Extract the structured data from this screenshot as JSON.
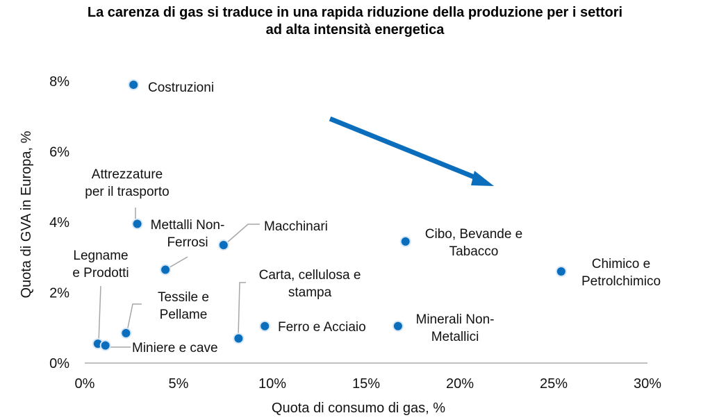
{
  "chart_data": {
    "type": "scatter",
    "title_lines": [
      "La carenza di gas si traduce in una rapida riduzione della produzione per i settori",
      "ad alta intensità energetica"
    ],
    "xlabel": "Quota di consumo di gas, %",
    "ylabel": "Quota di GVA in Europa, %",
    "xlim": [
      0,
      30
    ],
    "ylim": [
      0,
      8
    ],
    "x_ticks": [
      {
        "value": 0,
        "label": "0%"
      },
      {
        "value": 5,
        "label": "5%"
      },
      {
        "value": 10,
        "label": "10%"
      },
      {
        "value": 15,
        "label": "15%"
      },
      {
        "value": 20,
        "label": "20%"
      },
      {
        "value": 25,
        "label": "25%"
      },
      {
        "value": 30,
        "label": "30%"
      }
    ],
    "y_ticks": [
      {
        "value": 0,
        "label": "0%"
      },
      {
        "value": 2,
        "label": "2%"
      },
      {
        "value": 4,
        "label": "4%"
      },
      {
        "value": 6,
        "label": "6%"
      },
      {
        "value": 8,
        "label": "8%"
      }
    ],
    "grid": false,
    "legend": "none",
    "marker_color": "#0A6EBD",
    "arrow_color": "#0A6EBD",
    "arrow_direction": "down-right",
    "points": [
      {
        "label": [
          "Costruzioni"
        ],
        "x": 2.6,
        "y": 7.9
      },
      {
        "label": [
          "Attrezzature",
          "per il trasporto"
        ],
        "x": 2.8,
        "y": 3.95
      },
      {
        "label": [
          "Mettalli Non-",
          "Ferrosi"
        ],
        "x": 4.3,
        "y": 2.65
      },
      {
        "label": [
          "Macchinari"
        ],
        "x": 7.4,
        "y": 3.35
      },
      {
        "label": [
          "Legname",
          "e Prodotti"
        ],
        "x": 0.7,
        "y": 0.55
      },
      {
        "label": [
          "Miniere e cave"
        ],
        "x": 1.1,
        "y": 0.5
      },
      {
        "label": [
          "Tessile e",
          "Pellame"
        ],
        "x": 2.2,
        "y": 0.85
      },
      {
        "label": [
          "Carta, cellulosa e",
          "stampa"
        ],
        "x": 8.2,
        "y": 0.7
      },
      {
        "label": [
          "Ferro e Acciaio"
        ],
        "x": 9.6,
        "y": 1.05
      },
      {
        "label": [
          "Minerali Non-",
          "Metallici"
        ],
        "x": 16.7,
        "y": 1.05
      },
      {
        "label": [
          "Cibo, Bevande e",
          "Tabacco"
        ],
        "x": 17.1,
        "y": 3.45
      },
      {
        "label": [
          "Chimico e",
          "Petrolchimico"
        ],
        "x": 25.4,
        "y": 2.6
      }
    ]
  }
}
